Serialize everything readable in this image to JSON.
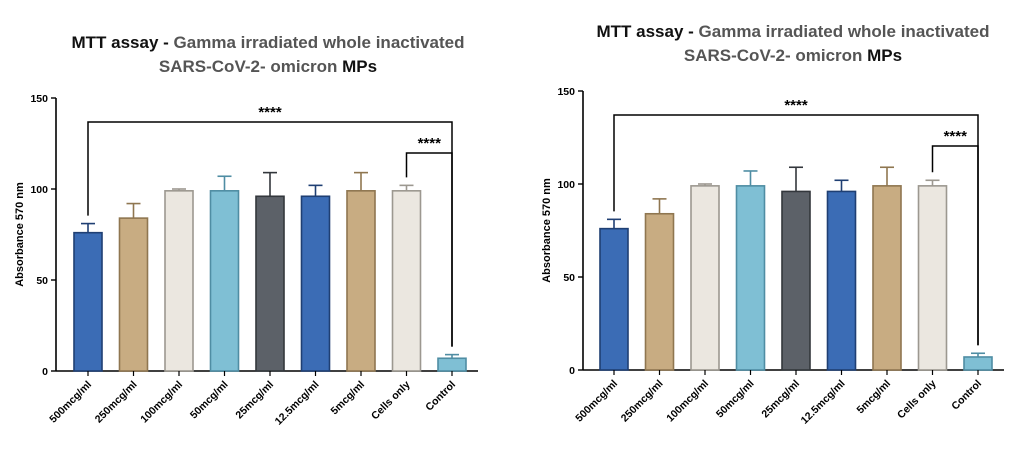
{
  "chart_data": [
    {
      "type": "bar",
      "title_part1": "MTT assay - ",
      "title_part2": "Gamma irradiated whole inactivated",
      "title_part3": "SARS-CoV-2- omicron ",
      "title_part4": "MPs",
      "xlabel": "",
      "ylabel": "Absorbance 570 nm",
      "ylim": [
        0,
        150
      ],
      "yticks": [
        0,
        50,
        100,
        150
      ],
      "categories": [
        "500mcg/ml",
        "250mcg/ml",
        "100mcg/ml",
        "50mcg/ml",
        "25mcg/ml",
        "12.5mcg/ml",
        "5mcg/ml",
        "Cells only",
        "Control"
      ],
      "values": [
        76,
        84,
        99,
        99,
        96,
        96,
        99,
        99,
        7
      ],
      "errors": [
        5,
        8,
        1,
        8,
        13,
        6,
        10,
        3,
        2
      ],
      "fill_colors": [
        "#3b6cb5",
        "#c8ac82",
        "#ebe7e0",
        "#7fbfd4",
        "#5c6168",
        "#3b6cb5",
        "#c8ac82",
        "#ebe7e0",
        "#7fbfd4"
      ],
      "edge_colors": [
        "#1f3f73",
        "#8f7650",
        "#9c9890",
        "#4f8da3",
        "#33373c",
        "#1f3f73",
        "#8f7650",
        "#9c9890",
        "#4f8da3"
      ],
      "significance": [
        {
          "from": 0,
          "to": 8,
          "label": "****"
        },
        {
          "from": 7,
          "to": 8,
          "label": "****"
        }
      ]
    },
    {
      "type": "bar",
      "title_part1": "MTT assay - ",
      "title_part2": "Gamma irradiated whole inactivated",
      "title_part3": "SARS-CoV-2- omicron ",
      "title_part4": "MPs",
      "xlabel": "",
      "ylabel": "Absorbance 570 nm",
      "ylim": [
        0,
        150
      ],
      "yticks": [
        0,
        50,
        100,
        150
      ],
      "categories": [
        "500mcg/ml",
        "250mcg/ml",
        "100mcg/ml",
        "50mcg/ml",
        "25mcg/ml",
        "12.5mcg/ml",
        "5mcg/ml",
        "Cells only",
        "Control"
      ],
      "values": [
        76,
        84,
        99,
        99,
        96,
        96,
        99,
        99,
        7
      ],
      "errors": [
        5,
        8,
        1,
        8,
        13,
        6,
        10,
        3,
        2
      ],
      "fill_colors": [
        "#3b6cb5",
        "#c8ac82",
        "#ebe7e0",
        "#7fbfd4",
        "#5c6168",
        "#3b6cb5",
        "#c8ac82",
        "#ebe7e0",
        "#7fbfd4"
      ],
      "edge_colors": [
        "#1f3f73",
        "#8f7650",
        "#9c9890",
        "#4f8da3",
        "#33373c",
        "#1f3f73",
        "#8f7650",
        "#9c9890",
        "#4f8da3"
      ],
      "significance": [
        {
          "from": 0,
          "to": 8,
          "label": "****"
        },
        {
          "from": 7,
          "to": 8,
          "label": "****"
        }
      ]
    }
  ]
}
